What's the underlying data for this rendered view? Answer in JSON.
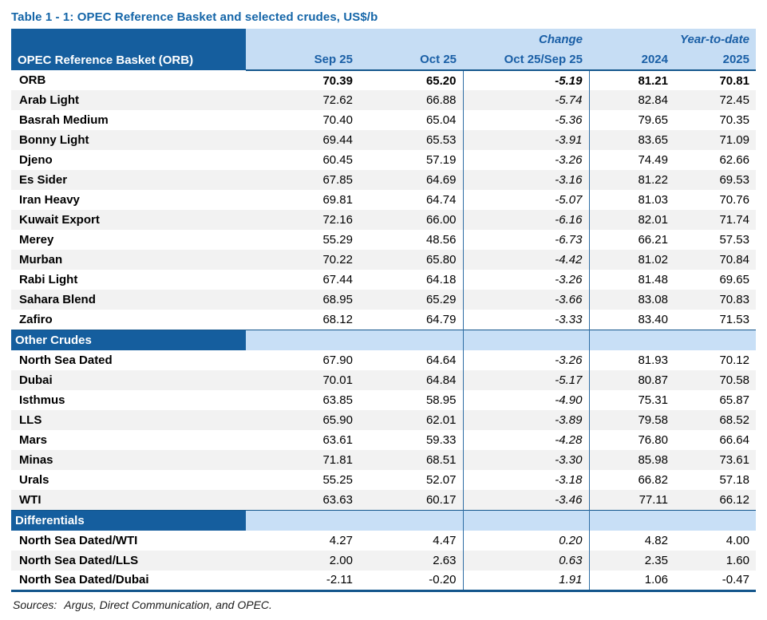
{
  "title": "Table 1 - 1: OPEC Reference Basket and selected crudes, US$/b",
  "colors": {
    "header_dark": "#155E9E",
    "header_light": "#C6DDF4",
    "section_light": "#C8DFF6",
    "row_stripe": "#F2F2F2",
    "line_dark": "#14568C",
    "line_vertical": "#2E6DA4",
    "text_blue": "#1A5FA6",
    "title_blue": "#1465A8"
  },
  "table": {
    "corner_label": "OPEC Reference Basket (ORB)",
    "group_headers": {
      "change": "Change",
      "ytd": "Year-to-date"
    },
    "columns": [
      "Sep 25",
      "Oct 25",
      "Oct 25/Sep 25",
      "2024",
      "2025"
    ],
    "sections": [
      {
        "name": null,
        "rows": [
          {
            "label": "ORB",
            "bold": true,
            "values": [
              "70.39",
              "65.20",
              "-5.19",
              "81.21",
              "70.81"
            ]
          },
          {
            "label": "Arab Light",
            "values": [
              "72.62",
              "66.88",
              "-5.74",
              "82.84",
              "72.45"
            ]
          },
          {
            "label": "Basrah Medium",
            "values": [
              "70.40",
              "65.04",
              "-5.36",
              "79.65",
              "70.35"
            ]
          },
          {
            "label": "Bonny Light",
            "values": [
              "69.44",
              "65.53",
              "-3.91",
              "83.65",
              "71.09"
            ]
          },
          {
            "label": "Djeno",
            "values": [
              "60.45",
              "57.19",
              "-3.26",
              "74.49",
              "62.66"
            ]
          },
          {
            "label": "Es Sider",
            "values": [
              "67.85",
              "64.69",
              "-3.16",
              "81.22",
              "69.53"
            ]
          },
          {
            "label": "Iran Heavy",
            "values": [
              "69.81",
              "64.74",
              "-5.07",
              "81.03",
              "70.76"
            ]
          },
          {
            "label": "Kuwait Export",
            "values": [
              "72.16",
              "66.00",
              "-6.16",
              "82.01",
              "71.74"
            ]
          },
          {
            "label": "Merey",
            "values": [
              "55.29",
              "48.56",
              "-6.73",
              "66.21",
              "57.53"
            ]
          },
          {
            "label": "Murban",
            "values": [
              "70.22",
              "65.80",
              "-4.42",
              "81.02",
              "70.84"
            ]
          },
          {
            "label": "Rabi Light",
            "values": [
              "67.44",
              "64.18",
              "-3.26",
              "81.48",
              "69.65"
            ]
          },
          {
            "label": "Sahara Blend",
            "values": [
              "68.95",
              "65.29",
              "-3.66",
              "83.08",
              "70.83"
            ]
          },
          {
            "label": "Zafiro",
            "values": [
              "68.12",
              "64.79",
              "-3.33",
              "83.40",
              "71.53"
            ]
          }
        ]
      },
      {
        "name": "Other Crudes",
        "rows": [
          {
            "label": "North Sea Dated",
            "values": [
              "67.90",
              "64.64",
              "-3.26",
              "81.93",
              "70.12"
            ]
          },
          {
            "label": "Dubai",
            "values": [
              "70.01",
              "64.84",
              "-5.17",
              "80.87",
              "70.58"
            ]
          },
          {
            "label": "Isthmus",
            "values": [
              "63.85",
              "58.95",
              "-4.90",
              "75.31",
              "65.87"
            ]
          },
          {
            "label": "LLS",
            "values": [
              "65.90",
              "62.01",
              "-3.89",
              "79.58",
              "68.52"
            ]
          },
          {
            "label": "Mars",
            "values": [
              "63.61",
              "59.33",
              "-4.28",
              "76.80",
              "66.64"
            ]
          },
          {
            "label": "Minas",
            "values": [
              "71.81",
              "68.51",
              "-3.30",
              "85.98",
              "73.61"
            ]
          },
          {
            "label": "Urals",
            "values": [
              "55.25",
              "52.07",
              "-3.18",
              "66.82",
              "57.18"
            ]
          },
          {
            "label": "WTI",
            "values": [
              "63.63",
              "60.17",
              "-3.46",
              "77.11",
              "66.12"
            ]
          }
        ]
      },
      {
        "name": "Differentials",
        "rows": [
          {
            "label": "North Sea Dated/WTI",
            "values": [
              "4.27",
              "4.47",
              "0.20",
              "4.82",
              "4.00"
            ]
          },
          {
            "label": "North Sea Dated/LLS",
            "values": [
              "2.00",
              "2.63",
              "0.63",
              "2.35",
              "1.60"
            ]
          },
          {
            "label": "North Sea Dated/Dubai",
            "values": [
              "-2.11",
              "-0.20",
              "1.91",
              "1.06",
              "-0.47"
            ]
          }
        ]
      }
    ]
  },
  "footer": {
    "label": "Sources:",
    "text": "Argus, Direct Communication, and OPEC."
  }
}
